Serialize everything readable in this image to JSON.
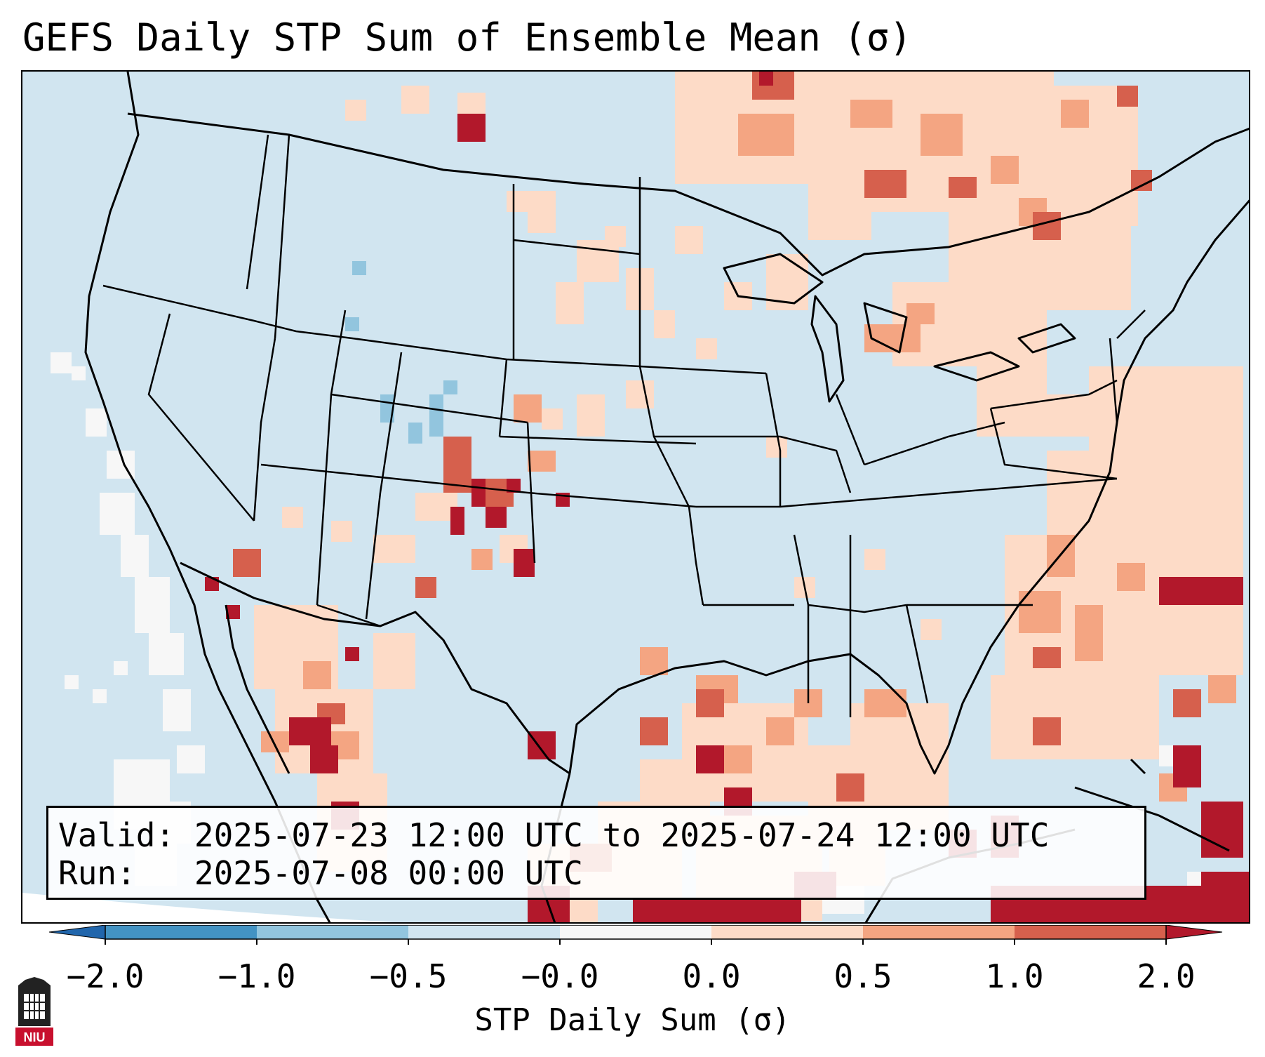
{
  "title": "GEFS Daily STP Sum of Ensemble Mean (σ)",
  "info": {
    "valid_label": "Valid:",
    "valid_value": "2025-07-23 12:00 UTC to 2025-07-24 12:00 UTC",
    "run_label": "Run:",
    "run_value": "2025-07-08 00:00 UTC"
  },
  "colorbar": {
    "label": "STP Daily Sum (σ)",
    "ticks": [
      "−2.0",
      "−1.0",
      "−0.5",
      "−0.0",
      "0.0",
      "0.5",
      "1.0",
      "2.0"
    ],
    "colors": [
      "#2166ac",
      "#4393c3",
      "#92c5de",
      "#d1e5f0",
      "#f7f7f7",
      "#fddbc7",
      "#f4a582",
      "#d6604d",
      "#b2182b"
    ]
  },
  "logo": {
    "text": "NIU",
    "name": "Northern Illinois University"
  },
  "map": {
    "background_color": "#d1e5f0",
    "region": "Continental United States, northern Mexico, Gulf of Mexico"
  }
}
